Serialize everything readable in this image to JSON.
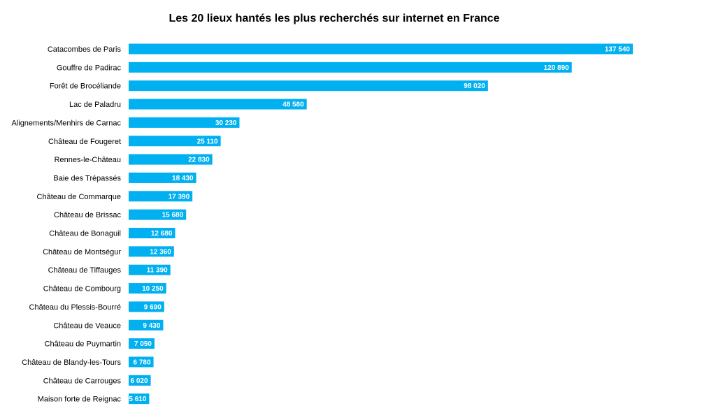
{
  "chart_data": {
    "type": "bar",
    "orientation": "horizontal",
    "title": "Les 20 lieux hantés les plus recherchés sur internet en France",
    "xlabel": "",
    "ylabel": "",
    "grid": false,
    "legend": "none",
    "bar_color": "#00B0F0",
    "categories": [
      "Catacombes de Paris",
      "Gouffre de Padirac",
      "Forêt de Brocéliande",
      "Lac de Paladru",
      "Alignements/Menhirs de Carnac",
      "Château de Fougeret",
      "Rennes-le-Château",
      "Baie des Trépassés",
      "Château de Commarque",
      "Château de Brissac",
      "Château de Bonaguil",
      "Château de Montségur",
      "Château de Tiffauges",
      "Château de Combourg",
      "Château du Plessis-Bourré",
      "Château de Veauce",
      "Château de Puymartin",
      "Château de Blandy-les-Tours",
      "Château de Carrouges",
      "Maison forte de Reignac"
    ],
    "values": [
      137540,
      120890,
      98020,
      48580,
      30230,
      25110,
      22830,
      18430,
      17390,
      15680,
      12680,
      12360,
      11390,
      10250,
      9690,
      9430,
      7050,
      6780,
      6020,
      5610
    ],
    "value_labels": [
      "137 540",
      "120 890",
      "98 020",
      "48 580",
      "30 230",
      "25 110",
      "22 830",
      "18 430",
      "17 390",
      "15 680",
      "12 680",
      "12 360",
      "11 390",
      "10 250",
      "9 690",
      "9 430",
      "7 050",
      "6 780",
      "6 020",
      "5 610"
    ],
    "xlim": [
      0,
      137540
    ]
  }
}
